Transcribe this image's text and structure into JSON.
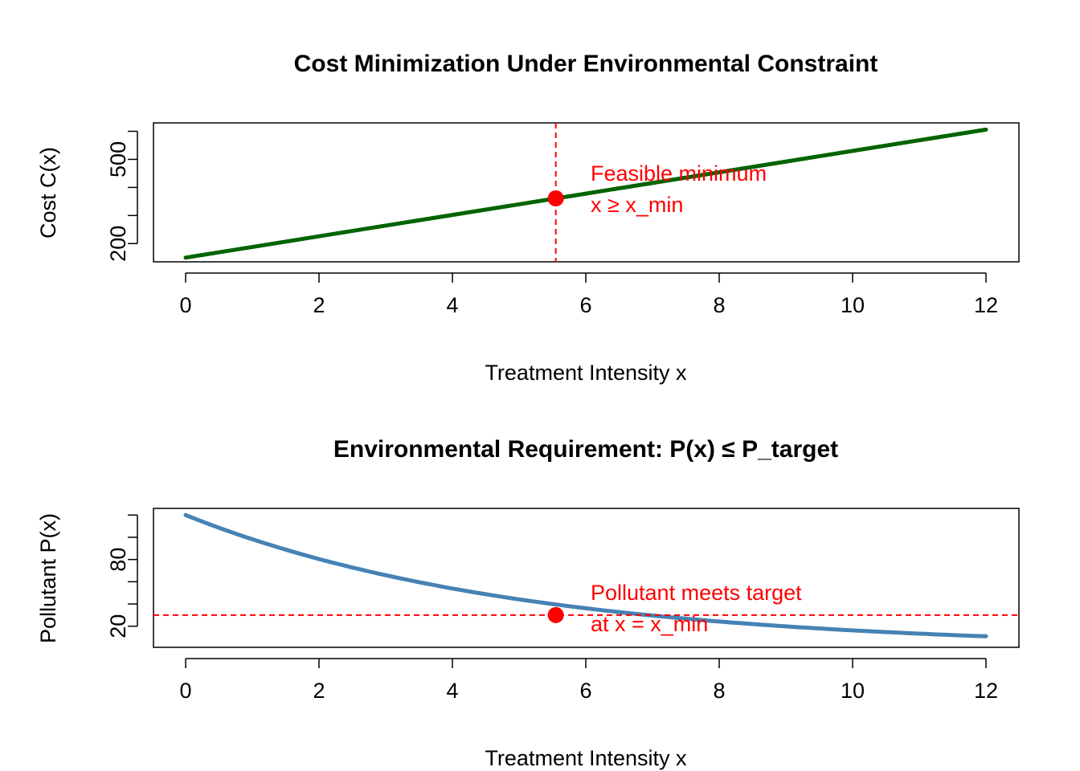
{
  "chart_data": [
    {
      "type": "line",
      "title": "Cost Minimization Under Environmental Constraint",
      "xlabel": "Treatment Intensity x",
      "ylabel": "Cost C(x)",
      "xlim": [
        0,
        12
      ],
      "ylim": [
        135,
        630
      ],
      "x_ticks": [
        0,
        2,
        4,
        6,
        8,
        10,
        12
      ],
      "y_ticks": [
        200,
        300,
        400,
        500,
        600
      ],
      "y_tick_labels": [
        "200",
        "",
        "",
        "500",
        ""
      ],
      "series": [
        {
          "color": "#006400",
          "x": [
            0,
            2,
            4,
            6,
            8,
            10,
            12
          ],
          "y": [
            150,
            226,
            302,
            378,
            454,
            530,
            606
          ]
        }
      ],
      "vline_x": 5.55,
      "point": {
        "x": 5.55,
        "y": 361
      },
      "annotation": [
        "Feasible minimum",
        "x ≥ x_min"
      ],
      "colors": {
        "line": "#006400",
        "marker": "#ff0000",
        "vline": "#ff0000"
      }
    },
    {
      "type": "line",
      "title": "Environmental Requirement: P(x) ≤ P_target",
      "xlabel": "Treatment Intensity x",
      "ylabel": "Pollutant P(x)",
      "xlim": [
        0,
        12
      ],
      "ylim": [
        1,
        126
      ],
      "x_ticks": [
        0,
        2,
        4,
        6,
        8,
        10,
        12
      ],
      "y_ticks": [
        20,
        40,
        60,
        80,
        100,
        120
      ],
      "y_tick_labels": [
        "20",
        "",
        "",
        "80",
        "",
        ""
      ],
      "series": [
        {
          "color": "#4682b4",
          "curve": "exponential",
          "y0": 120,
          "decay": 0.2,
          "offset": 0,
          "x_range": [
            0,
            12
          ]
        }
      ],
      "hline_y": 30,
      "point": {
        "x": 5.55,
        "y": 30
      },
      "annotation": [
        "Pollutant meets target",
        "at x = x_min"
      ],
      "colors": {
        "line": "#4682b4",
        "marker": "#ff0000",
        "hline": "#ff0000"
      }
    }
  ]
}
